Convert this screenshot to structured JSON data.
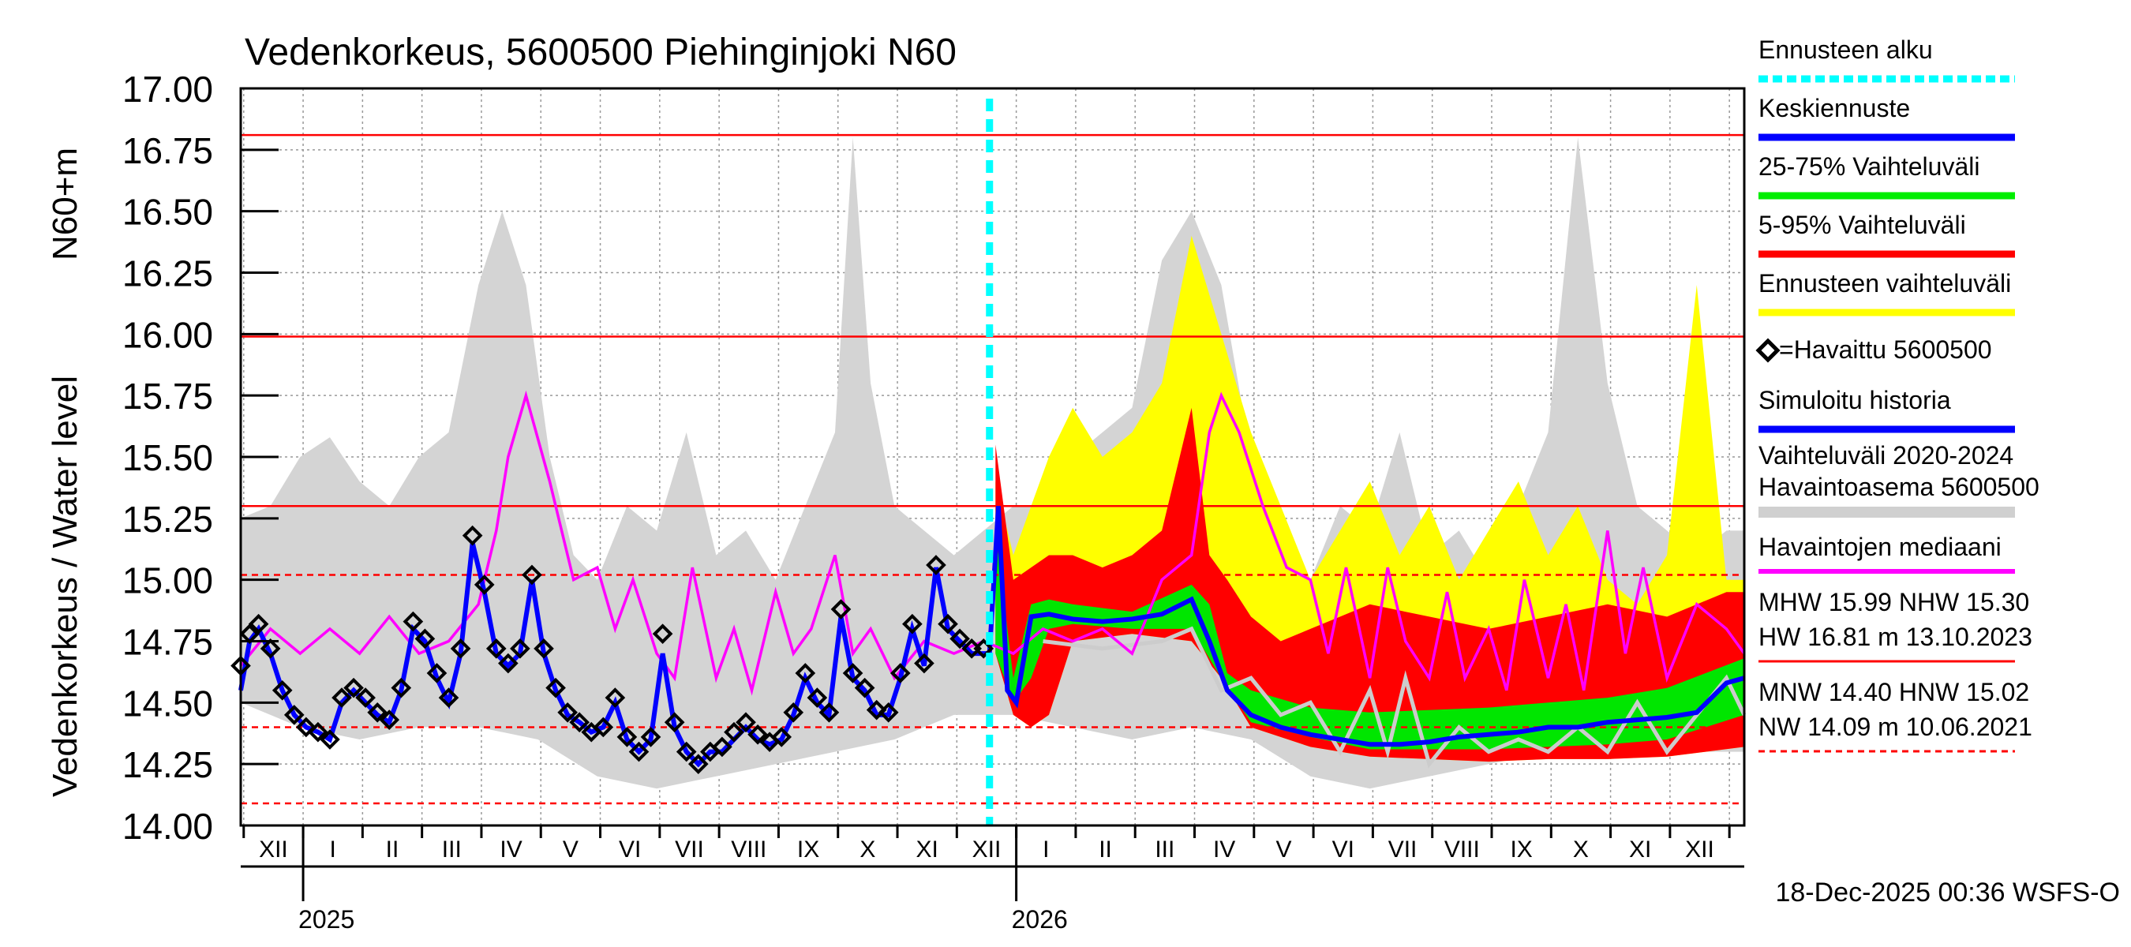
{
  "chart_data": {
    "type": "line",
    "title": "Vedenkorkeus, 5600500 Piehinginjoki N60",
    "ylabel": "Vedenkorkeus / Water level",
    "ylabel_unit": "N60+m",
    "ylim": [
      14.0,
      17.0
    ],
    "yticks": [
      14.0,
      14.25,
      14.5,
      14.75,
      15.0,
      15.25,
      15.5,
      15.75,
      16.0,
      16.25,
      16.5,
      16.75,
      17.0
    ],
    "ytick_labels": [
      "14.00",
      "14.25",
      "14.50",
      "14.75",
      "15.00",
      "15.25",
      "15.50",
      "15.75",
      "16.00",
      "16.25",
      "16.50",
      "16.75",
      "17.00"
    ],
    "x_month_labels": [
      "XII",
      "I",
      "II",
      "III",
      "IV",
      "V",
      "VI",
      "VII",
      "VIII",
      "IX",
      "X",
      "XI",
      "XII",
      "I",
      "II",
      "III",
      "IV",
      "V",
      "VI",
      "VII",
      "VIII",
      "IX",
      "X",
      "XI",
      "XII"
    ],
    "x_year_labels": [
      "2025",
      "2026"
    ],
    "x_month_index_range": [
      0,
      25.3
    ],
    "forecast_start_month": 12.6,
    "reference_lines": [
      {
        "name": "HW",
        "value": 16.81,
        "style": "solid",
        "color": "#ff0000"
      },
      {
        "name": "MHW",
        "value": 15.99,
        "style": "solid",
        "color": "#ff0000"
      },
      {
        "name": "NHW",
        "value": 15.3,
        "style": "solid",
        "color": "#ff0000"
      },
      {
        "name": "HNW",
        "value": 15.02,
        "style": "dashed",
        "color": "#ff0000"
      },
      {
        "name": "MNW",
        "value": 14.4,
        "style": "dashed",
        "color": "#ff0000"
      },
      {
        "name": "NW",
        "value": 14.09,
        "style": "dashed",
        "color": "#ff0000"
      }
    ],
    "legend": {
      "placement": "right",
      "entries": [
        {
          "label": "Ennusteen alku",
          "color": "#00ffff",
          "style": "dotted"
        },
        {
          "label": "Keskiennuste",
          "color": "#0000ff",
          "style": "solid"
        },
        {
          "label": "25-75% Vaihteluväli",
          "color": "#00ee00",
          "style": "solid"
        },
        {
          "label": "5-95% Vaihteluväli",
          "color": "#ff0000",
          "style": "solid"
        },
        {
          "label": "Ennusteen vaihteluväli",
          "color": "#ffff00",
          "style": "solid"
        },
        {
          "label": "=Havaittu 5600500",
          "color": "#000000",
          "style": "marker"
        },
        {
          "label": "Simuloitu historia",
          "color": "#0000ff",
          "style": "solid"
        },
        {
          "label": "Vaihteluväli 2020-2024",
          "color": "#d0d0d0",
          "style": "none"
        },
        {
          "label": "Havaintoasema 5600500",
          "color": "#d0d0d0",
          "style": "solid"
        },
        {
          "label": "Havaintojen mediaani",
          "color": "#ff00ff",
          "style": "solid"
        }
      ],
      "stats": [
        {
          "text": "MHW  15.99 NHW  15.30",
          "line": "none"
        },
        {
          "text": "HW  16.81 m 13.10.2023",
          "line": "solid"
        },
        {
          "text": "MNW  14.40 HNW  15.02",
          "line": "none"
        },
        {
          "text": "NW  14.09 m 10.06.2021",
          "line": "dashed"
        }
      ]
    },
    "timestamp": "18-Dec-2025 00:36 WSFS-O",
    "series": [
      {
        "name": "Vaihteluväli 2020-2024 upper",
        "x": [
          0,
          0.5,
          1,
          1.5,
          2,
          2.5,
          3,
          3.5,
          4,
          4.4,
          4.8,
          5.2,
          5.6,
          6,
          6.5,
          7,
          7.5,
          8,
          8.5,
          9,
          9.5,
          10,
          10.3,
          10.6,
          11,
          11.5,
          12,
          12.5,
          13,
          13.5,
          14,
          14.5,
          15,
          15.5,
          16,
          16.5,
          17,
          17.5,
          18,
          18.5,
          19,
          19.5,
          20,
          20.5,
          21,
          21.5,
          22,
          22.5,
          23,
          23.5,
          24,
          24.5,
          25,
          25.3
        ],
        "values": [
          15.25,
          15.3,
          15.5,
          15.58,
          15.4,
          15.3,
          15.5,
          15.6,
          16.2,
          16.5,
          16.2,
          15.5,
          15.1,
          15.0,
          15.3,
          15.2,
          15.6,
          15.1,
          15.2,
          15.0,
          15.3,
          15.6,
          16.8,
          15.8,
          15.3,
          15.2,
          15.1,
          15.2,
          15.3,
          15.3,
          15.5,
          15.6,
          15.7,
          16.3,
          16.5,
          16.2,
          15.5,
          15.1,
          15.0,
          15.3,
          15.2,
          15.6,
          15.1,
          15.2,
          15.0,
          15.3,
          15.6,
          16.8,
          15.8,
          15.3,
          15.2,
          15.1,
          15.2,
          15.2
        ]
      },
      {
        "name": "Vaihteluväli 2020-2024 lower",
        "x": [
          0,
          1,
          2,
          3,
          4,
          5,
          6,
          7,
          8,
          9,
          10,
          11,
          12,
          13,
          14,
          15,
          16,
          17,
          18,
          19,
          20,
          21,
          22,
          23,
          24,
          25.3
        ],
        "values": [
          14.5,
          14.4,
          14.35,
          14.4,
          14.4,
          14.35,
          14.2,
          14.15,
          14.2,
          14.25,
          14.3,
          14.35,
          14.45,
          14.45,
          14.4,
          14.35,
          14.4,
          14.35,
          14.2,
          14.15,
          14.2,
          14.25,
          14.3,
          14.35,
          14.3,
          14.3
        ]
      },
      {
        "name": "Ennusteen vaihteluväli upper",
        "x": [
          12.7,
          13.0,
          13.3,
          13.6,
          14.0,
          14.5,
          15.0,
          15.5,
          16.0,
          16.5,
          17.0,
          17.5,
          18.0,
          18.5,
          19.0,
          19.5,
          20.0,
          20.5,
          21.0,
          21.5,
          22.0,
          22.5,
          23.0,
          23.5,
          24.0,
          24.5,
          25.0,
          25.3
        ],
        "values": [
          15.4,
          15.1,
          15.3,
          15.5,
          15.7,
          15.5,
          15.6,
          15.8,
          16.4,
          16.0,
          15.6,
          15.3,
          15.0,
          15.2,
          15.4,
          15.1,
          15.3,
          15.0,
          15.2,
          15.4,
          15.1,
          15.3,
          15.0,
          14.9,
          15.1,
          16.2,
          15.0,
          15.0
        ]
      },
      {
        "name": "5-95% upper",
        "x": [
          12.7,
          13.0,
          13.3,
          13.6,
          14.0,
          14.5,
          15.0,
          15.5,
          16.0,
          16.3,
          16.6,
          17.0,
          17.5,
          18.0,
          18.5,
          19.0,
          20.0,
          21.0,
          22.0,
          23.0,
          24.0,
          25.0,
          25.3
        ],
        "values": [
          15.55,
          15.0,
          15.05,
          15.1,
          15.1,
          15.05,
          15.1,
          15.2,
          15.7,
          15.1,
          15.0,
          14.85,
          14.75,
          14.8,
          14.85,
          14.9,
          14.85,
          14.8,
          14.85,
          14.9,
          14.85,
          14.95,
          14.95
        ]
      },
      {
        "name": "5-95% lower",
        "x": [
          12.7,
          13.0,
          13.3,
          13.6,
          14.0,
          15.0,
          16.0,
          16.5,
          17.0,
          18.0,
          19.0,
          20.0,
          21.0,
          22.0,
          23.0,
          24.0,
          25.3
        ],
        "values": [
          14.7,
          14.45,
          14.4,
          14.45,
          14.75,
          14.78,
          14.75,
          14.6,
          14.4,
          14.32,
          14.28,
          14.27,
          14.26,
          14.27,
          14.27,
          14.28,
          14.32
        ]
      },
      {
        "name": "25-75% upper",
        "x": [
          12.7,
          13.0,
          13.3,
          13.6,
          14.0,
          15.0,
          16.0,
          16.3,
          16.6,
          17.0,
          18.0,
          19.0,
          20.0,
          21.0,
          22.0,
          23.0,
          24.0,
          25.3
        ],
        "values": [
          15.2,
          14.6,
          14.9,
          14.92,
          14.9,
          14.87,
          14.98,
          14.9,
          14.62,
          14.55,
          14.48,
          14.46,
          14.47,
          14.48,
          14.5,
          14.52,
          14.56,
          14.68
        ]
      },
      {
        "name": "25-75% lower",
        "x": [
          12.7,
          13.0,
          13.3,
          13.6,
          14.0,
          15.0,
          16.0,
          16.5,
          17.0,
          18.0,
          19.0,
          20.0,
          21.0,
          22.0,
          23.0,
          24.0,
          25.3
        ],
        "values": [
          14.7,
          14.5,
          14.6,
          14.8,
          14.82,
          14.8,
          14.8,
          14.6,
          14.42,
          14.36,
          14.31,
          14.31,
          14.31,
          14.32,
          14.33,
          14.35,
          14.45
        ]
      },
      {
        "name": "Keskiennuste",
        "x": [
          12.6,
          12.75,
          12.9,
          13.05,
          13.3,
          13.6,
          14.0,
          14.5,
          15.0,
          15.5,
          16.0,
          16.3,
          16.6,
          17.0,
          17.5,
          18.0,
          18.5,
          19.0,
          19.5,
          20.0,
          20.5,
          21.0,
          21.5,
          22.0,
          22.5,
          23.0,
          23.5,
          24.0,
          24.5,
          25.0,
          25.3
        ],
        "values": [
          14.7,
          15.3,
          14.55,
          14.5,
          14.85,
          14.86,
          14.84,
          14.83,
          14.84,
          14.86,
          14.92,
          14.75,
          14.55,
          14.45,
          14.4,
          14.37,
          14.35,
          14.33,
          14.33,
          14.34,
          14.36,
          14.37,
          14.38,
          14.4,
          14.4,
          14.42,
          14.43,
          14.44,
          14.46,
          14.58,
          14.6
        ]
      },
      {
        "name": "Havaintoasema 5600500",
        "x": [
          13.5,
          14.5,
          15.5,
          16.0,
          16.5,
          17.0,
          17.5,
          18.0,
          18.5,
          19.0,
          19.3,
          19.6,
          20.0,
          20.5,
          21.0,
          21.5,
          22.0,
          22.5,
          23.0,
          23.5,
          24.0,
          24.5,
          25.0,
          25.3
        ],
        "values": [
          14.75,
          14.72,
          14.75,
          14.8,
          14.55,
          14.6,
          14.45,
          14.5,
          14.3,
          14.55,
          14.3,
          14.6,
          14.25,
          14.4,
          14.3,
          14.35,
          14.3,
          14.4,
          14.3,
          14.5,
          14.3,
          14.45,
          14.6,
          14.45
        ]
      },
      {
        "name": "Havaintojen mediaani",
        "x": [
          0,
          0.5,
          1,
          1.5,
          2,
          2.5,
          3,
          3.5,
          4,
          4.3,
          4.5,
          4.8,
          5.2,
          5.6,
          6,
          6.3,
          6.6,
          7,
          7.3,
          7.6,
          8,
          8.3,
          8.6,
          9,
          9.3,
          9.6,
          10,
          10.3,
          10.6,
          11,
          11.5,
          12,
          12.5,
          13,
          13.5,
          14,
          14.5,
          15,
          15.5,
          16,
          16.3,
          16.5,
          16.8,
          17.2,
          17.6,
          18,
          18.3,
          18.6,
          19,
          19.3,
          19.6,
          20,
          20.3,
          20.6,
          21,
          21.3,
          21.6,
          22,
          22.3,
          22.6,
          23,
          23.3,
          23.6,
          24,
          24.5,
          25,
          25.3
        ],
        "values": [
          14.65,
          14.8,
          14.7,
          14.8,
          14.7,
          14.85,
          14.7,
          14.75,
          14.9,
          15.2,
          15.5,
          15.75,
          15.4,
          15.0,
          15.05,
          14.8,
          15.0,
          14.7,
          14.6,
          15.05,
          14.6,
          14.8,
          14.55,
          14.95,
          14.7,
          14.8,
          15.1,
          14.7,
          14.8,
          14.6,
          14.75,
          14.7,
          14.75,
          14.7,
          14.8,
          14.75,
          14.8,
          14.7,
          15.0,
          15.1,
          15.6,
          15.75,
          15.6,
          15.3,
          15.05,
          15.0,
          14.7,
          15.05,
          14.6,
          15.05,
          14.75,
          14.6,
          14.95,
          14.6,
          14.8,
          14.55,
          15.0,
          14.6,
          14.9,
          14.55,
          15.2,
          14.7,
          15.05,
          14.6,
          14.9,
          14.8,
          14.7
        ]
      },
      {
        "name": "Simuloitu historia",
        "x": [
          0,
          0.15,
          0.3,
          0.5,
          0.7,
          0.9,
          1.1,
          1.3,
          1.5,
          1.7,
          1.9,
          2.1,
          2.3,
          2.5,
          2.7,
          2.9,
          3.1,
          3.3,
          3.5,
          3.7,
          3.9,
          4.1,
          4.3,
          4.5,
          4.7,
          4.9,
          5.1,
          5.3,
          5.5,
          5.7,
          5.9,
          6.1,
          6.3,
          6.5,
          6.7,
          6.9,
          7.1,
          7.3,
          7.5,
          7.7,
          7.9,
          8.1,
          8.3,
          8.5,
          8.7,
          8.9,
          9.1,
          9.3,
          9.5,
          9.7,
          9.9,
          10.1,
          10.3,
          10.5,
          10.7,
          10.9,
          11.1,
          11.3,
          11.5,
          11.7,
          11.9,
          12.1,
          12.3,
          12.5,
          12.6
        ],
        "values": [
          14.55,
          14.75,
          14.8,
          14.7,
          14.55,
          14.45,
          14.4,
          14.38,
          14.35,
          14.5,
          14.55,
          14.5,
          14.45,
          14.42,
          14.55,
          14.8,
          14.75,
          14.6,
          14.5,
          14.7,
          15.15,
          14.95,
          14.7,
          14.65,
          14.7,
          15.0,
          14.7,
          14.55,
          14.45,
          14.42,
          14.38,
          14.4,
          14.5,
          14.35,
          14.3,
          14.35,
          14.7,
          14.4,
          14.3,
          14.25,
          14.3,
          14.3,
          14.35,
          14.4,
          14.35,
          14.33,
          14.35,
          14.45,
          14.6,
          14.5,
          14.45,
          14.85,
          14.6,
          14.55,
          14.45,
          14.45,
          14.6,
          14.8,
          14.65,
          15.05,
          14.8,
          14.75,
          14.7,
          14.7,
          14.7
        ]
      },
      {
        "name": "Havaittu 5600500",
        "x": [
          0,
          0.15,
          0.3,
          0.5,
          0.7,
          0.9,
          1.1,
          1.3,
          1.5,
          1.7,
          1.9,
          2.1,
          2.3,
          2.5,
          2.7,
          2.9,
          3.1,
          3.3,
          3.5,
          3.7,
          3.9,
          4.1,
          4.3,
          4.5,
          4.7,
          4.9,
          5.1,
          5.3,
          5.5,
          5.7,
          5.9,
          6.1,
          6.3,
          6.5,
          6.7,
          6.9,
          7.1,
          7.3,
          7.5,
          7.7,
          7.9,
          8.1,
          8.3,
          8.5,
          8.7,
          8.9,
          9.1,
          9.3,
          9.5,
          9.7,
          9.9,
          10.1,
          10.3,
          10.5,
          10.7,
          10.9,
          11.1,
          11.3,
          11.5,
          11.7,
          11.9,
          12.1,
          12.3,
          12.5
        ],
        "values": [
          14.65,
          14.78,
          14.82,
          14.72,
          14.55,
          14.45,
          14.4,
          14.38,
          14.35,
          14.52,
          14.56,
          14.52,
          14.46,
          14.43,
          14.56,
          14.83,
          14.76,
          14.62,
          14.52,
          14.72,
          15.18,
          14.98,
          14.72,
          14.66,
          14.72,
          15.02,
          14.72,
          14.56,
          14.46,
          14.42,
          14.38,
          14.4,
          14.52,
          14.36,
          14.3,
          14.36,
          14.78,
          14.42,
          14.3,
          14.25,
          14.3,
          14.32,
          14.38,
          14.42,
          14.37,
          14.34,
          14.36,
          14.46,
          14.62,
          14.52,
          14.46,
          14.88,
          14.62,
          14.56,
          14.47,
          14.46,
          14.62,
          14.82,
          14.66,
          15.06,
          14.82,
          14.76,
          14.72,
          14.72
        ]
      }
    ]
  }
}
